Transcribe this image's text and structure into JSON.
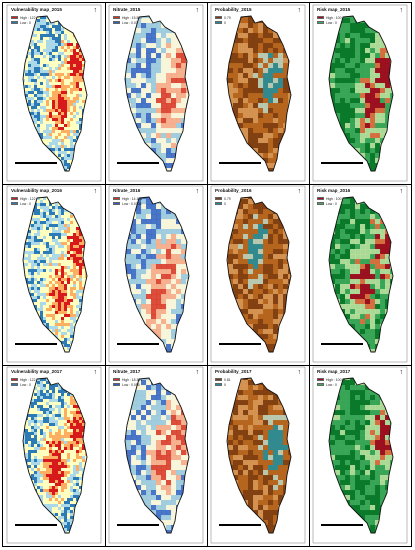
{
  "colors": {
    "vulnerability": [
      "#d7191c",
      "#fdae61",
      "#ffffbf",
      "#abd9e9",
      "#2c7bb6"
    ],
    "nitrate": [
      "#d7301f",
      "#f4a582",
      "#f7f4d9",
      "#92c5de",
      "#2b5fc4"
    ],
    "probability": [
      "#7a3b10",
      "#b5651d",
      "#d99a5b",
      "#b9d8c8",
      "#1d8fa0"
    ],
    "risk": [
      "#b2001f",
      "#f46d43",
      "#c7e9a8",
      "#41ab5d",
      "#0b7a2a"
    ]
  },
  "rows": [
    {
      "panels": [
        {
          "kind": "vulnerability",
          "title": "Vulnerability map_2015",
          "high": "High : 122",
          "low": "Low : 0",
          "seed": 11,
          "hot": [
            [
              0.72,
              0.32
            ],
            [
              0.55,
              0.55
            ]
          ]
        },
        {
          "kind": "nitrate",
          "title": "Nitrate_2015",
          "high": "High : 15.507",
          "low": "Low : 0.03",
          "seed": 23,
          "hot": [
            [
              0.72,
              0.35
            ],
            [
              0.6,
              0.55
            ]
          ]
        },
        {
          "kind": "probability",
          "title": "Probability_2015",
          "high": "0.79",
          "low": "0",
          "seed": 37,
          "hot": [
            [
              0.6,
              0.4
            ]
          ]
        },
        {
          "kind": "risk",
          "title": "Risk map_2015",
          "high": "High : 100",
          "low": "Low : 0",
          "seed": 41,
          "hot": [
            [
              0.72,
              0.38
            ],
            [
              0.6,
              0.55
            ]
          ]
        }
      ]
    },
    {
      "panels": [
        {
          "kind": "vulnerability",
          "title": "Vulnerability map_2016",
          "high": "High : 122",
          "low": "Low : 0",
          "seed": 53,
          "hot": [
            [
              0.72,
              0.35
            ],
            [
              0.55,
              0.6
            ]
          ]
        },
        {
          "kind": "nitrate",
          "title": "Nitrate_2016",
          "high": "High : 14.176",
          "low": "Low : 0.0308",
          "seed": 67,
          "hot": [
            [
              0.62,
              0.45
            ],
            [
              0.5,
              0.62
            ]
          ]
        },
        {
          "kind": "probability",
          "title": "Probability_2016",
          "high": "0.79",
          "low": "0",
          "seed": 71,
          "hot": [
            [
              0.45,
              0.35
            ]
          ]
        },
        {
          "kind": "risk",
          "title": "Risk map_2016",
          "high": "High : 100",
          "low": "Low : 0",
          "seed": 83,
          "hot": [
            [
              0.7,
              0.35
            ],
            [
              0.5,
              0.55
            ]
          ]
        }
      ]
    },
    {
      "panels": [
        {
          "kind": "vulnerability",
          "title": "Vulnerability map_2017",
          "high": "High : 122",
          "low": "Low : 0",
          "seed": 97,
          "hot": [
            [
              0.72,
              0.35
            ],
            [
              0.5,
              0.55
            ]
          ]
        },
        {
          "kind": "nitrate",
          "title": "Nitrate_2017",
          "high": "High : 18.361",
          "low": "Low : 0.055",
          "seed": 101,
          "hot": [
            [
              0.72,
              0.35
            ],
            [
              0.55,
              0.5
            ]
          ]
        },
        {
          "kind": "probability",
          "title": "Probability_2017",
          "high": "0.81",
          "low": "0",
          "seed": 113,
          "hot": [
            [
              0.65,
              0.45
            ]
          ]
        },
        {
          "kind": "risk",
          "title": "Risk map_2017",
          "high": "High : 100",
          "low": "Low : 0",
          "seed": 127,
          "hot": [
            [
              0.7,
              0.38
            ]
          ]
        }
      ]
    }
  ]
}
